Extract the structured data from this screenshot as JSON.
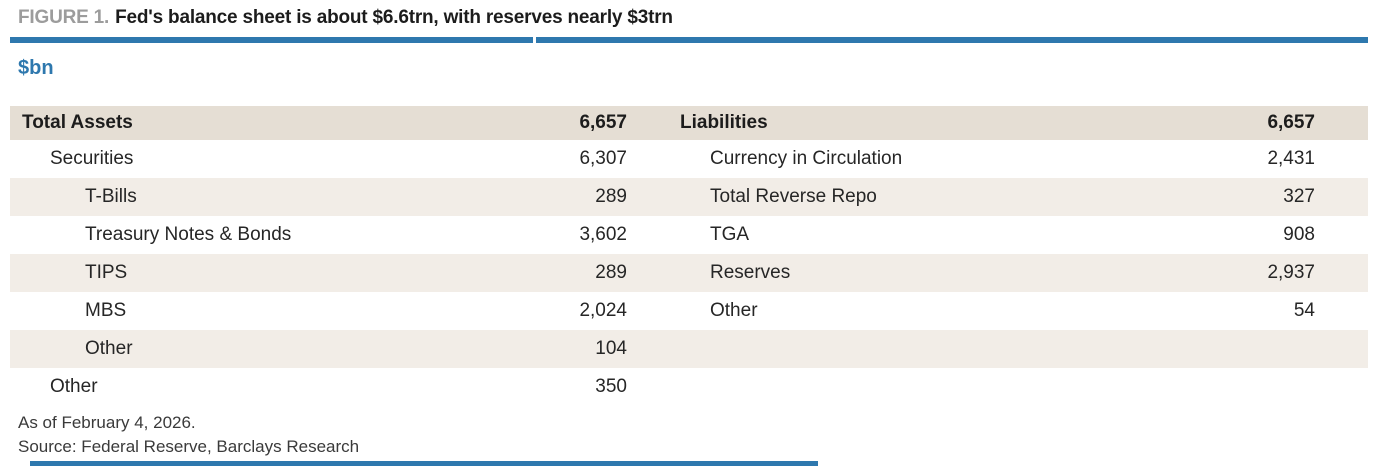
{
  "figure": {
    "label": "FIGURE 1.",
    "title": "Fed's balance sheet is about $6.6trn, with reserves nearly $3trn",
    "units": "$bn"
  },
  "table": {
    "header": {
      "assets_label": "Total Assets",
      "assets_total": "6,657",
      "liabilities_label": "Liabilities",
      "liabilities_total": "6,657"
    },
    "rows": [
      {
        "left": {
          "label": "Securities",
          "value": "6,307",
          "indent": 1
        },
        "right": {
          "label": "Currency in Circulation",
          "value": "2,431",
          "indent": 1
        }
      },
      {
        "left": {
          "label": "T-Bills",
          "value": "289",
          "indent": 2
        },
        "right": {
          "label": "Total Reverse Repo",
          "value": "327",
          "indent": 1
        }
      },
      {
        "left": {
          "label": "Treasury Notes & Bonds",
          "value": "3,602",
          "indent": 2
        },
        "right": {
          "label": "TGA",
          "value": "908",
          "indent": 1
        }
      },
      {
        "left": {
          "label": "TIPS",
          "value": "289",
          "indent": 2
        },
        "right": {
          "label": "Reserves",
          "value": "2,937",
          "indent": 1
        }
      },
      {
        "left": {
          "label": "MBS",
          "value": "2,024",
          "indent": 2
        },
        "right": {
          "label": "Other",
          "value": "54",
          "indent": 1
        }
      },
      {
        "left": {
          "label": "Other",
          "value": "104",
          "indent": 2
        },
        "right": {
          "label": "",
          "value": "",
          "indent": 1
        }
      },
      {
        "left": {
          "label": "Other",
          "value": "350",
          "indent": 1
        },
        "right": {
          "label": "",
          "value": "",
          "indent": 1
        }
      }
    ]
  },
  "footer": {
    "as_of": "As of February 4, 2026.",
    "source": "Source: Federal Reserve, Barclays Research"
  },
  "colors": {
    "accent_blue": "#2E78AE",
    "header_row_bg": "#E5DED4",
    "stripe_row_bg": "#F2EDE7",
    "figure_label_gray": "#9C9C9C",
    "text_dark": "#1C1C1C"
  }
}
